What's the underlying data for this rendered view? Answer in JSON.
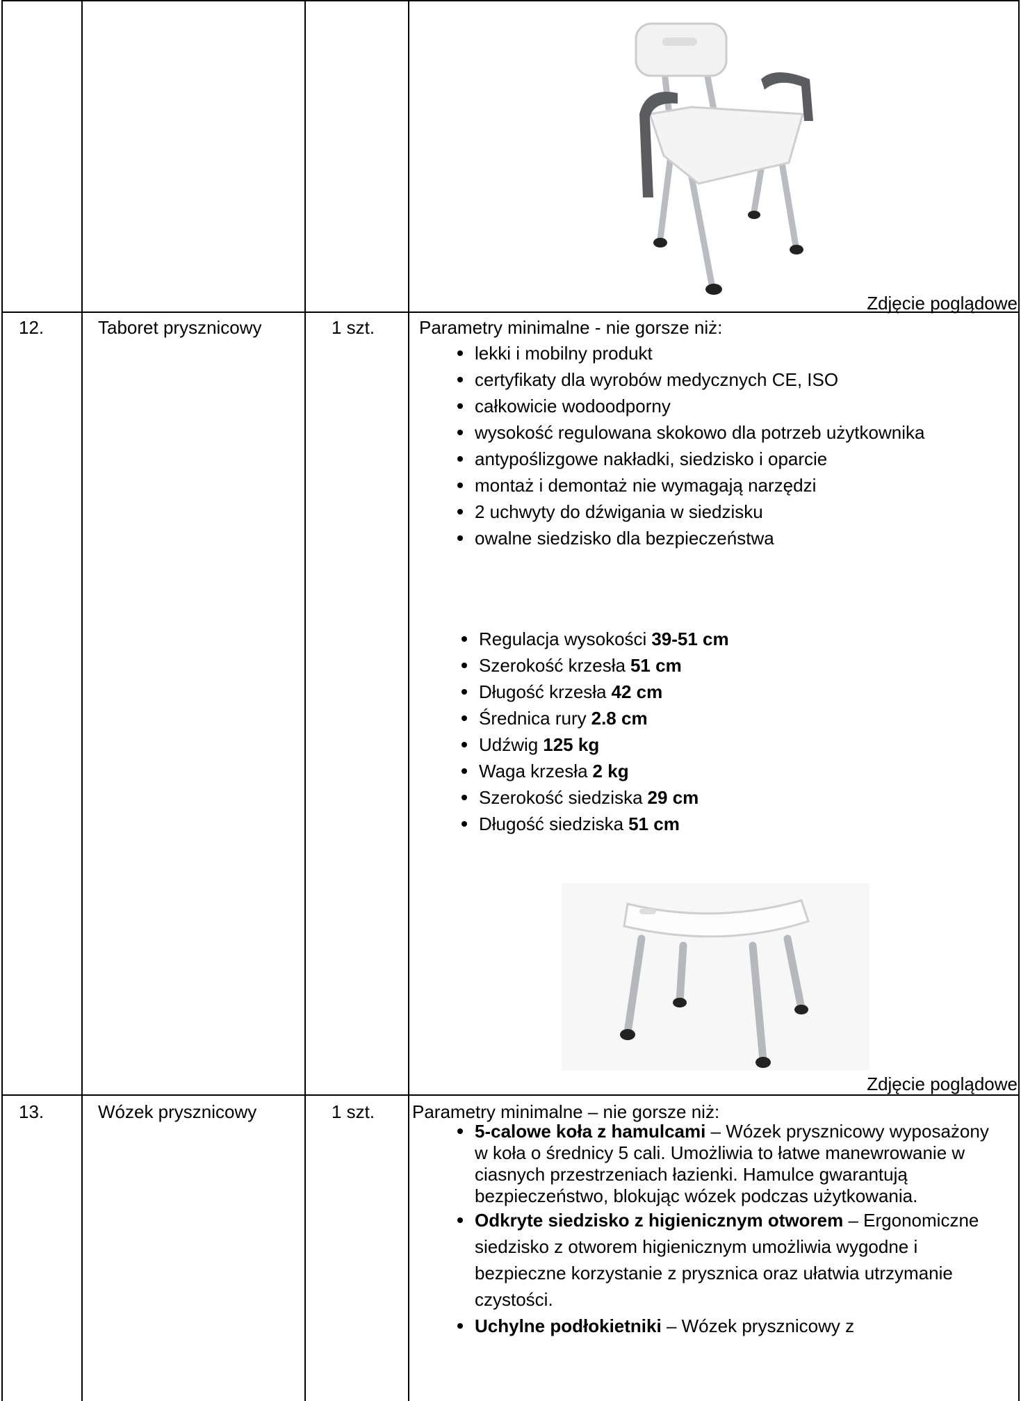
{
  "rows": [
    {
      "caption": "Zdjęcie poglądowe"
    },
    {
      "number": "12.",
      "name": "Taboret prysznicowy",
      "quantity": "1 szt.",
      "heading": "Parametry minimalne - nie gorsze niż:",
      "features": [
        "lekki i mobilny produkt",
        "certyfikaty dla wyrobów medycznych CE, ISO",
        "całkowicie wodoodporny",
        "wysokość regulowana skokowo dla potrzeb użytkownika",
        "antypoślizgowe nakładki, siedzisko i oparcie",
        "montaż i demontaż nie wymagają narzędzi",
        "2 uchwyty do dźwigania w siedzisku",
        "owalne siedzisko dla bezpieczeństwa"
      ],
      "specs": [
        {
          "label": "Regulacja wysokości",
          "value": "39-51 cm"
        },
        {
          "label": "Szerokość krzesła",
          "value": "51 cm"
        },
        {
          "label": "Długość krzesła",
          "value": "42 cm"
        },
        {
          "label": "Średnica rury",
          "value": "2.8 cm"
        },
        {
          "label": "Udźwig",
          "value": "125 kg"
        },
        {
          "label": "Waga krzesła",
          "value": "2 kg"
        },
        {
          "label": "Szerokość siedziska",
          "value": "29 cm"
        },
        {
          "label": "Długość siedziska",
          "value": "51 cm"
        }
      ],
      "caption": "Zdjęcie poglądowe"
    },
    {
      "number": "13.",
      "name": "Wózek prysznicowy",
      "quantity": "1 szt.",
      "heading": "Parametry minimalne – nie gorsze niż:",
      "items": [
        {
          "bold": "5-calowe koła z hamulcami",
          "text": "– Wózek prysznicowy wyposażony w koła o średnicy 5 cali. Umożliwia to łatwe manewrowanie w ciasnych przestrzeniach łazienki. Hamulce gwarantują bezpieczeństwo, blokując wózek podczas użytkowania."
        },
        {
          "bold": "Odkryte siedzisko z higienicznym otworem",
          "text": "– Ergonomiczne siedzisko z otworem higienicznym umożliwia wygodne i bezpieczne korzystanie z prysznica oraz ułatwia utrzymanie czystości."
        },
        {
          "bold": "Uchylne podłokietniki",
          "text": "– Wózek prysznicowy z"
        }
      ]
    }
  ]
}
